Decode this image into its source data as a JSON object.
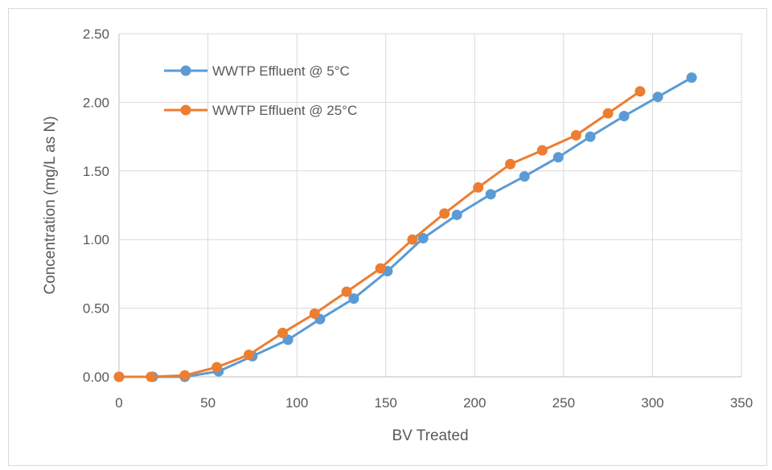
{
  "chart_data": {
    "type": "line",
    "title": "",
    "xlabel": "BV Treated",
    "ylabel": "Concentration (mg/L as N)",
    "xlim": [
      0,
      350
    ],
    "ylim": [
      0,
      2.5
    ],
    "x_ticks": [
      "0",
      "50",
      "100",
      "150",
      "200",
      "250",
      "300",
      "350"
    ],
    "y_ticks": [
      "0.00",
      "0.50",
      "1.00",
      "1.50",
      "2.00",
      "2.50"
    ],
    "grid": true,
    "legend_position": "top-left",
    "series": [
      {
        "name": "WWTP Effluent @ 5°C",
        "color": "#5b9bd5",
        "x": [
          0,
          19,
          37,
          56,
          75,
          95,
          113,
          132,
          151,
          171,
          190,
          209,
          228,
          247,
          265,
          284,
          303,
          322
        ],
        "y": [
          0.0,
          0.0,
          0.0,
          0.04,
          0.15,
          0.27,
          0.42,
          0.57,
          0.77,
          1.01,
          1.18,
          1.33,
          1.46,
          1.6,
          1.75,
          1.9,
          2.04,
          2.18
        ]
      },
      {
        "name": "WWTP Effluent @ 25°C",
        "color": "#ed7d31",
        "x": [
          0,
          18,
          37,
          55,
          73,
          92,
          110,
          128,
          147,
          165,
          183,
          202,
          220,
          238,
          257,
          275,
          293
        ],
        "y": [
          0.0,
          0.0,
          0.01,
          0.07,
          0.16,
          0.32,
          0.46,
          0.62,
          0.79,
          1.0,
          1.19,
          1.38,
          1.55,
          1.65,
          1.76,
          1.92,
          2.08
        ]
      }
    ]
  }
}
